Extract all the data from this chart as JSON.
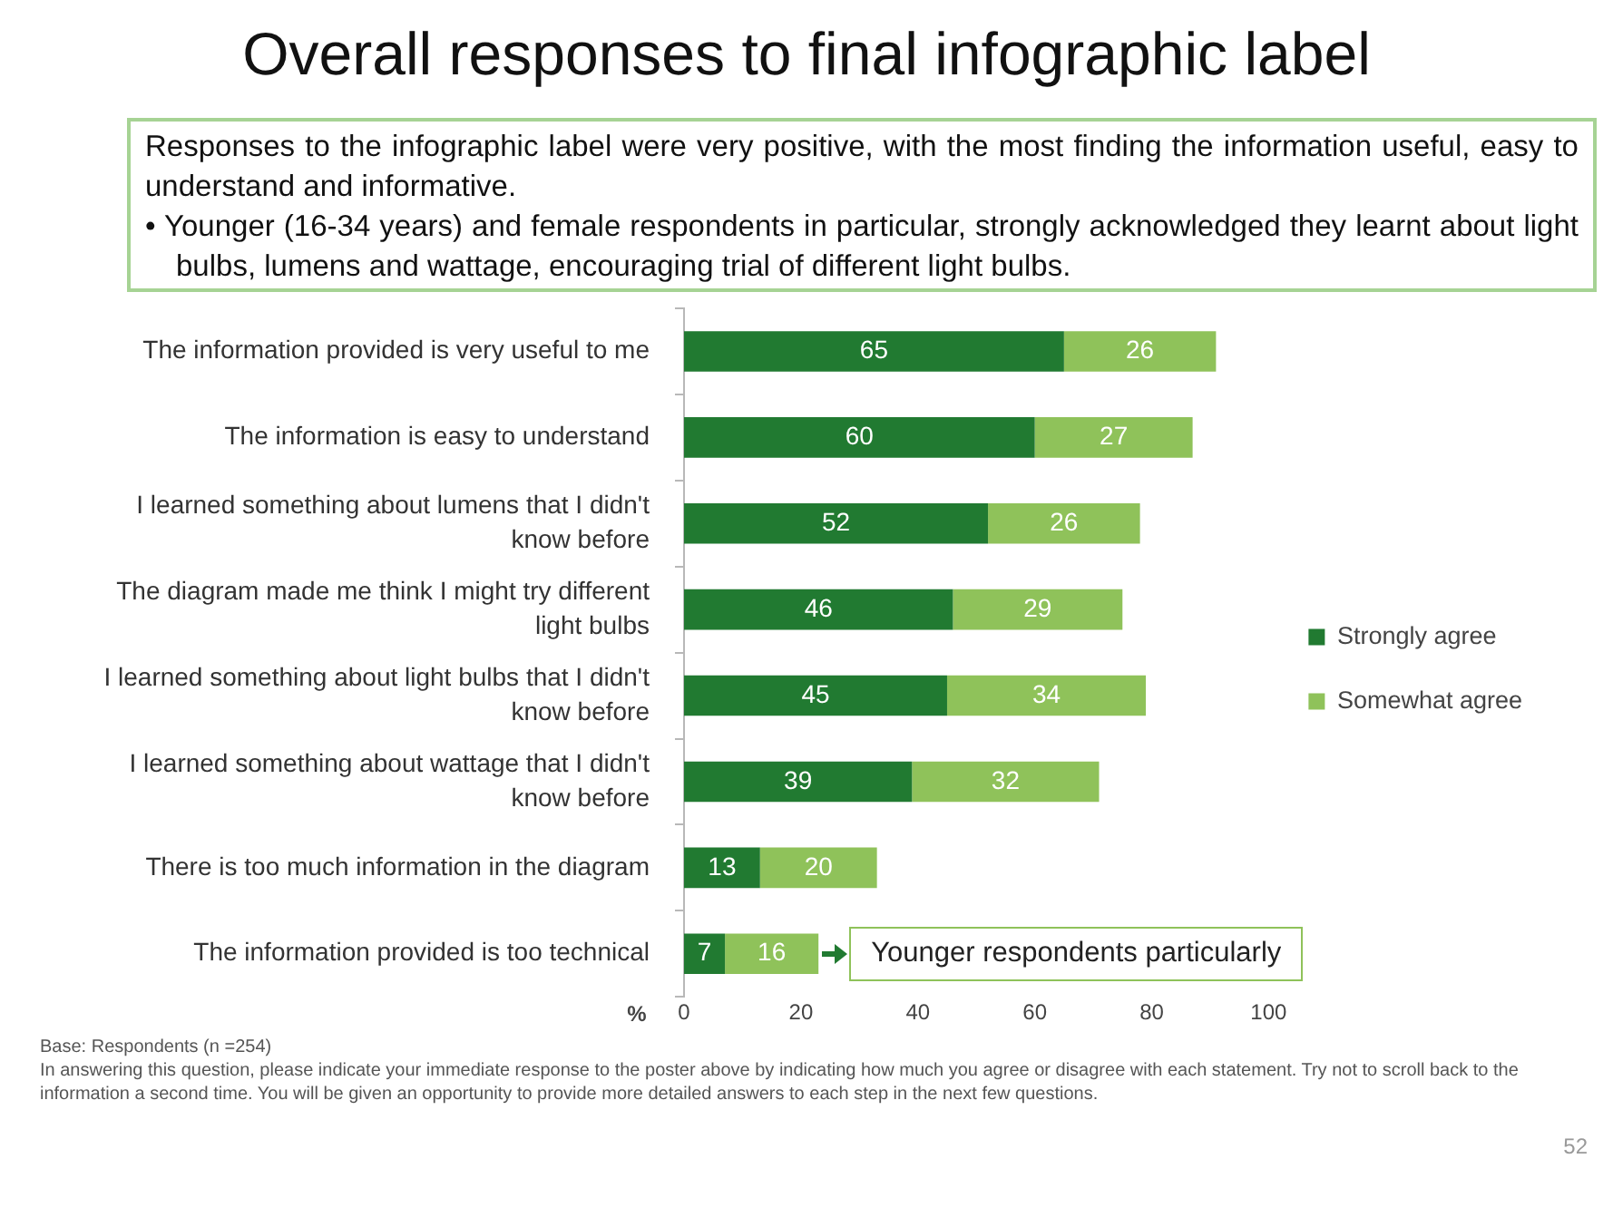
{
  "chart_data": {
    "type": "bar",
    "orientation": "horizontal",
    "stacked": true,
    "title": "Overall responses to final infographic label",
    "subtitle": "Responses to the infographic label were very positive, with the most finding the information useful, easy to understand and informative.\n• Younger (16-34 years) and female respondents in particular, strongly acknowledged they learnt about light bulbs, lumens and wattage, encouraging trial of different light bulbs.",
    "xlabel": "%",
    "categories": [
      "The information provided is very useful to me",
      "The information is easy to understand",
      "I learned something about lumens that I didn't know before",
      "The diagram made me think I might try different light bulbs",
      "I learned something about light bulbs that I didn't know before",
      "I learned something about wattage that I didn't know before",
      "There is too much information in the diagram",
      "The information provided is too technical"
    ],
    "series": [
      {
        "name": "Strongly agree",
        "color": "#217a31",
        "values": [
          65,
          60,
          52,
          46,
          45,
          39,
          13,
          7
        ]
      },
      {
        "name": "Somewhat agree",
        "color": "#8fc25a",
        "values": [
          26,
          27,
          26,
          29,
          34,
          32,
          20,
          16
        ]
      }
    ],
    "xlim": [
      0,
      100
    ],
    "xticks": [
      0,
      20,
      40,
      60,
      80,
      100
    ],
    "data_labels": true,
    "legend": "right",
    "annotations": [
      {
        "text": "Younger respondents particularly",
        "x": 23,
        "y": "The information provided is too technical"
      },
      "Base: Respondents (n =254)",
      "In answering this question, please indicate your immediate response to the poster above by indicating how much you agree or disagree with each statement. Try not to scroll back to the information a second time. You will be given an opportunity to provide more detailed answers to each step in the next few questions.",
      "52"
    ]
  }
}
